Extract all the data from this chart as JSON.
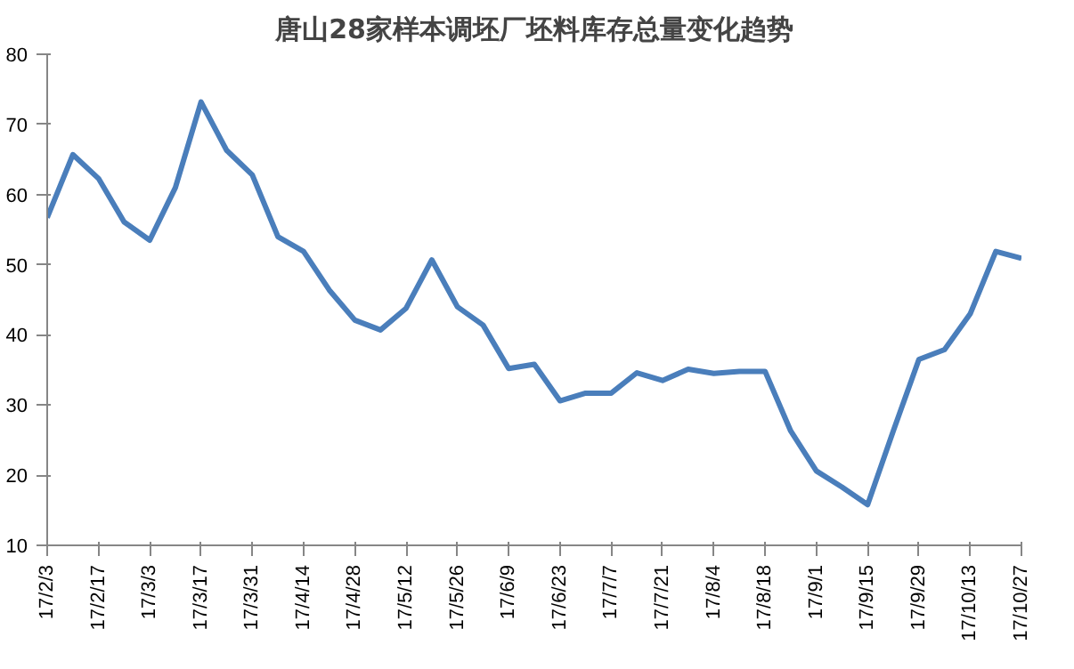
{
  "chart_data": {
    "type": "line",
    "title": "唐山28家样本调坯厂坯料库存总量变化趋势",
    "categories": [
      "17/2/3",
      null,
      "17/2/17",
      null,
      "17/3/3",
      null,
      "17/3/17",
      null,
      "17/3/31",
      null,
      "17/4/14",
      null,
      "17/4/28",
      null,
      "17/5/12",
      null,
      "17/5/26",
      null,
      "17/6/9",
      null,
      "17/6/23",
      null,
      "17/7/7",
      null,
      "17/7/21",
      null,
      "17/8/4",
      null,
      "17/8/18",
      null,
      "17/9/1",
      null,
      "17/9/15",
      null,
      "17/9/29",
      null,
      "17/10/13",
      null,
      "17/10/27"
    ],
    "series": [
      {
        "color": "#4a7ebb",
        "values": [
          56.7,
          65.7,
          62.3,
          56.1,
          53.5,
          61.0,
          73.2,
          66.3,
          62.8,
          54.0,
          51.9,
          46.4,
          42.1,
          40.7,
          43.8,
          50.7,
          44.0,
          41.4,
          35.2,
          35.8,
          30.6,
          31.7,
          31.7,
          34.6,
          33.5,
          35.1,
          34.5,
          34.8,
          34.8,
          26.3,
          20.6,
          18.3,
          15.8,
          26.3,
          36.5,
          37.9,
          43.0,
          51.9,
          50.9
        ]
      }
    ],
    "ylim": [
      10,
      80
    ],
    "yticks": [
      10,
      20,
      30,
      40,
      50,
      60,
      70,
      80
    ],
    "grid": false,
    "marker": "none",
    "line_style": "solid"
  }
}
